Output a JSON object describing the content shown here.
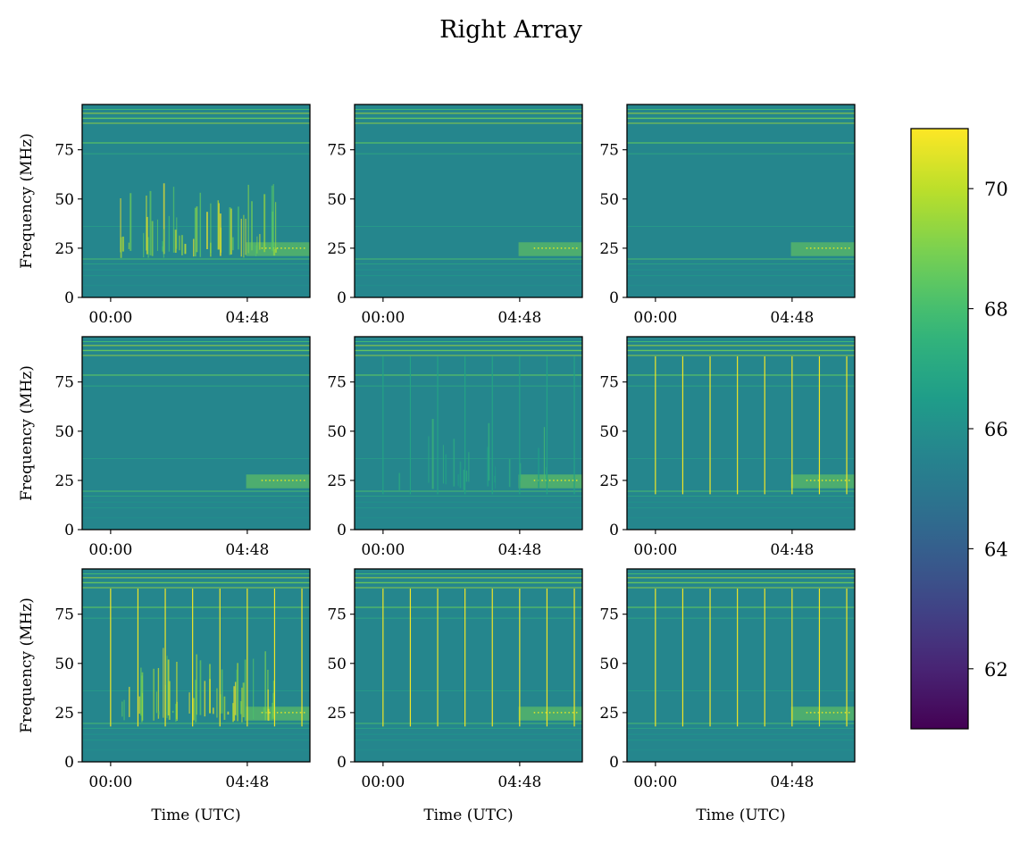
{
  "chart_data": {
    "type": "heatmap",
    "title": "Right Array",
    "layout": "3x3 grid of spectrograms with shared colorbar",
    "xlabel": "Time (UTC)",
    "ylabel": "Frequency (MHz)",
    "x_ticks": [
      "00:00",
      "04:48"
    ],
    "y_ticks": [
      0,
      25,
      50,
      75
    ],
    "ylim": [
      0,
      98
    ],
    "xlim_hours": [
      -1.0,
      7.0
    ],
    "colormap": "viridis",
    "colorbar": {
      "min": 61,
      "max": 71,
      "ticks": [
        62,
        64,
        66,
        68,
        70
      ]
    },
    "grid": false,
    "panels": [
      {
        "row": 0,
        "col": 0,
        "vertical_spikes": 0,
        "rfi_bursts": "strong"
      },
      {
        "row": 0,
        "col": 1,
        "vertical_spikes": 0,
        "rfi_bursts": "none"
      },
      {
        "row": 0,
        "col": 2,
        "vertical_spikes": 0,
        "rfi_bursts": "none"
      },
      {
        "row": 1,
        "col": 0,
        "vertical_spikes": 0,
        "rfi_bursts": "none"
      },
      {
        "row": 1,
        "col": 1,
        "vertical_spikes": 8,
        "rfi_bursts": "faint"
      },
      {
        "row": 1,
        "col": 2,
        "vertical_spikes": 8,
        "rfi_bursts": "none"
      },
      {
        "row": 2,
        "col": 0,
        "vertical_spikes": 8,
        "rfi_bursts": "strong"
      },
      {
        "row": 2,
        "col": 1,
        "vertical_spikes": 8,
        "rfi_bursts": "none"
      },
      {
        "row": 2,
        "col": 2,
        "vertical_spikes": 8,
        "rfi_bursts": "none"
      }
    ]
  }
}
